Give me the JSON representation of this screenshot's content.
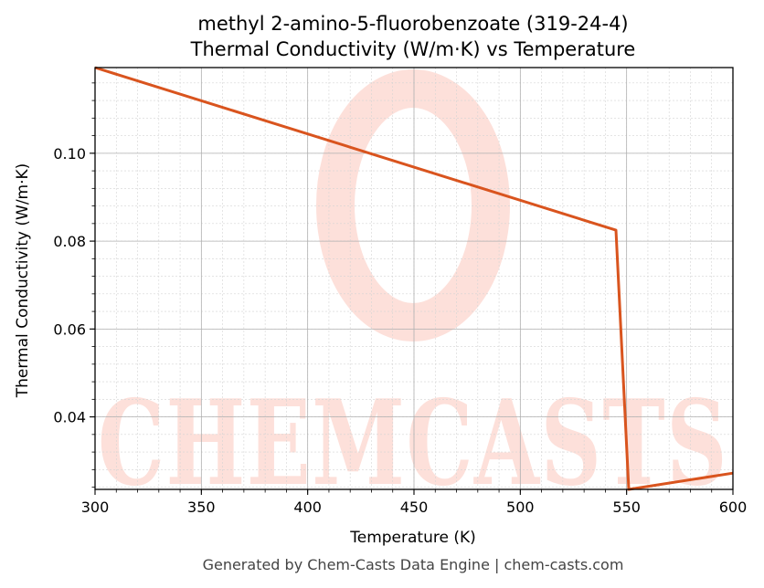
{
  "chart_data": {
    "type": "line",
    "title": "methyl 2-amino-5-fluorobenzoate (319-24-4)",
    "subtitle": "Thermal Conductivity (W/m·K) vs Temperature",
    "xlabel": "Temperature (K)",
    "ylabel": "Thermal Conductivity (W/m·K)",
    "xlim": [
      300,
      600
    ],
    "ylim": [
      0.0235,
      0.1195
    ],
    "xticks": [
      300,
      350,
      400,
      450,
      500,
      550,
      600
    ],
    "yticks": [
      0.04,
      0.06,
      0.08,
      0.1
    ],
    "ytick_labels": [
      "0.04",
      "0.06",
      "0.08",
      "0.10"
    ],
    "grid": true,
    "series": [
      {
        "color": "#d9541e",
        "x": [
          300,
          545,
          551,
          600
        ],
        "y": [
          0.1195,
          0.0825,
          0.0235,
          0.0272
        ]
      }
    ]
  },
  "watermark": {
    "text": "CHEMCASTS",
    "color": "#fde0da"
  },
  "footer": "Generated by Chem-Casts Data Engine | chem-casts.com"
}
